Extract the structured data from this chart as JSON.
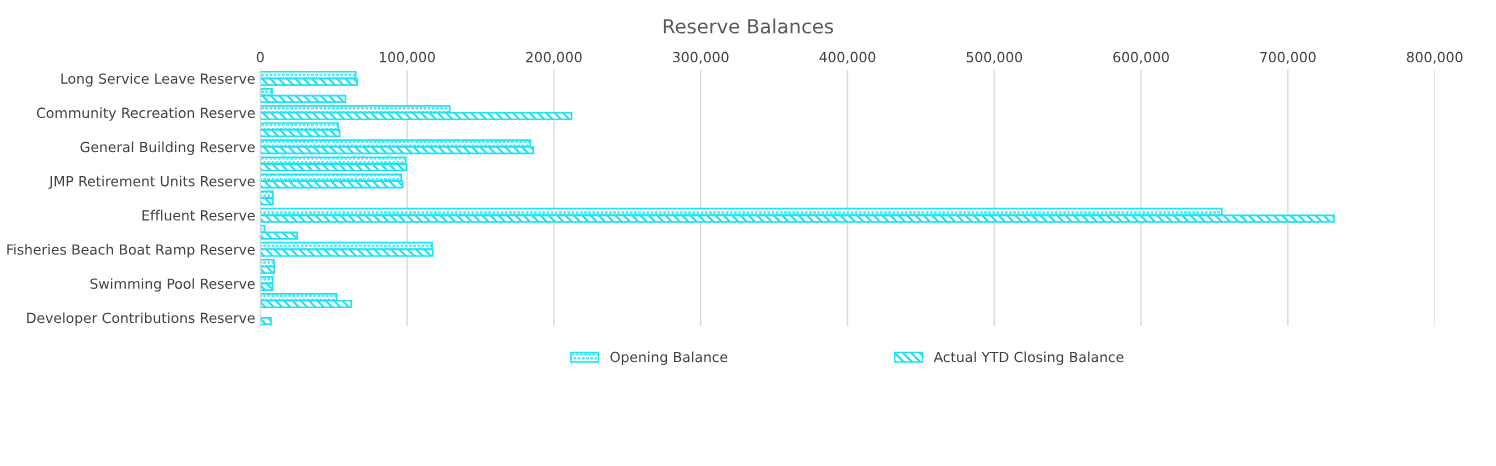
{
  "chart_data": {
    "type": "bar",
    "orientation": "horizontal",
    "title": "Reserve Balances",
    "categories": [
      "Long Service Leave Reserve",
      null,
      "Community Recreation Reserve",
      null,
      "General Building Reserve",
      null,
      "JMP Retirement Units Reserve",
      null,
      "Effluent Reserve",
      null,
      "Fisheries Beach Boat Ramp Reserve",
      null,
      "Swimming Pool Reserve",
      null,
      "Developer Contributions Reserve"
    ],
    "series": [
      {
        "name": "Opening Balance",
        "color": "#1ee3f5",
        "values": [
          65000,
          8000,
          129000,
          53000,
          184000,
          99000,
          96000,
          8600,
          655000,
          3000,
          117000,
          9300,
          8400,
          52000,
          null
        ]
      },
      {
        "name": "Actual YTD Closing Balance",
        "color": "#1ee3f5",
        "values": [
          66000,
          58000,
          212000,
          54000,
          186000,
          99500,
          97000,
          8600,
          731500,
          25000,
          117500,
          9500,
          8400,
          62000,
          7300
        ]
      }
    ],
    "xlim": [
      0,
      800000
    ],
    "xticks": [
      {
        "value": 0,
        "label": "0"
      },
      {
        "value": 100000,
        "label": "100,000"
      },
      {
        "value": 200000,
        "label": "200,000"
      },
      {
        "value": 300000,
        "label": "300,000"
      },
      {
        "value": 400000,
        "label": "400,000"
      },
      {
        "value": 500000,
        "label": "500,000"
      },
      {
        "value": 600000,
        "label": "600,000"
      },
      {
        "value": 700000,
        "label": "700,000"
      },
      {
        "value": 800000,
        "label": "800,000"
      }
    ],
    "grid": "x",
    "legend": "bottom"
  }
}
